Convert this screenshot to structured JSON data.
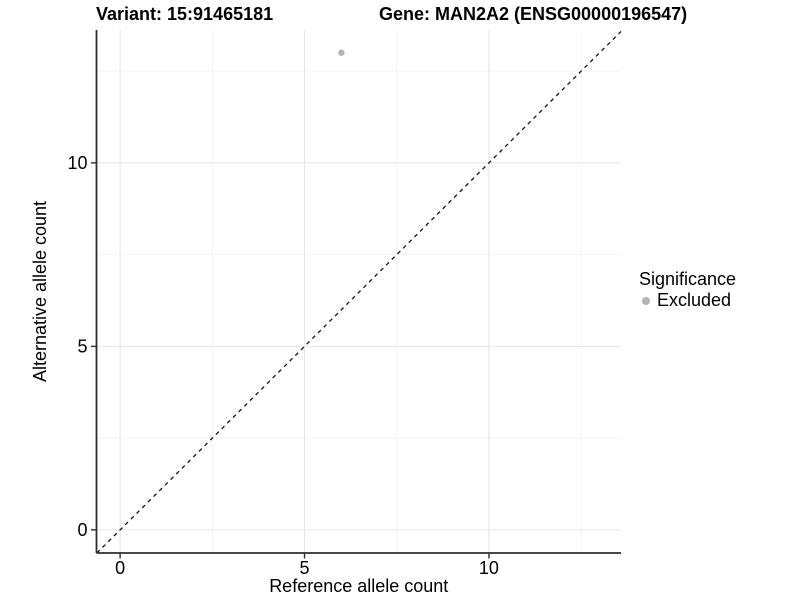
{
  "header": {
    "variant_title": "Variant: 15:91465181",
    "gene_title": "Gene: MAN2A2 (ENSG00000196547)"
  },
  "chart_data": {
    "type": "scatter",
    "title_left": "Variant: 15:91465181",
    "title_right": "Gene: MAN2A2 (ENSG00000196547)",
    "xlabel": "Reference allele count",
    "ylabel": "Alternative allele count",
    "xlim": [
      -0.64,
      13.58
    ],
    "ylim": [
      -0.63,
      13.62
    ],
    "x_ticks": [
      0,
      5,
      10
    ],
    "y_ticks": [
      0,
      5,
      10
    ],
    "x_minor_ticks": [
      2.5,
      7.5,
      12.5
    ],
    "y_minor_ticks": [
      2.5,
      7.5,
      12.5
    ],
    "grid": true,
    "points": [
      {
        "x": 6,
        "y": 13,
        "series": "Excluded"
      }
    ],
    "reference_line": {
      "slope": 1,
      "intercept": 0,
      "style": "dashed"
    },
    "legend": {
      "title": "Significance",
      "position": "right",
      "items": [
        {
          "label": "Excluded",
          "color": "#b5b5b5"
        }
      ]
    }
  },
  "colors": {
    "point": "#b5b5b5",
    "grid_major": "#e6e6e6",
    "grid_minor": "#f0f0f0",
    "axis": "#2e2e2e",
    "dashed_line": "#141414",
    "text": "#000000",
    "background": "#ffffff"
  }
}
